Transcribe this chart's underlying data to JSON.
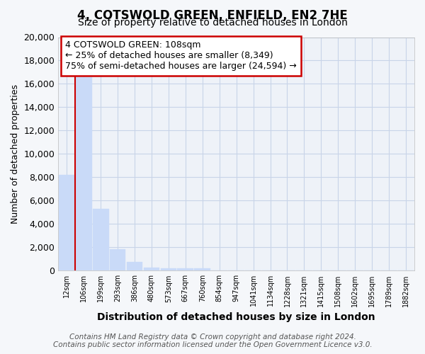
{
  "title": "4, COTSWOLD GREEN, ENFIELD, EN2 7HE",
  "subtitle": "Size of property relative to detached houses in London",
  "xlabel": "Distribution of detached houses by size in London",
  "ylabel": "Number of detached properties",
  "bar_color": "#c9daf8",
  "bar_edge_color": "#c9daf8",
  "categories": [
    "12sqm",
    "106sqm",
    "199sqm",
    "293sqm",
    "386sqm",
    "480sqm",
    "573sqm",
    "667sqm",
    "760sqm",
    "854sqm",
    "947sqm",
    "1041sqm",
    "1134sqm",
    "1228sqm",
    "1321sqm",
    "1415sqm",
    "1508sqm",
    "1602sqm",
    "1695sqm",
    "1789sqm",
    "1882sqm"
  ],
  "values": [
    8200,
    16600,
    5300,
    1850,
    750,
    270,
    200,
    200,
    200,
    0,
    0,
    0,
    0,
    0,
    0,
    0,
    0,
    0,
    0,
    0,
    0
  ],
  "ylim": [
    0,
    20000
  ],
  "yticks": [
    0,
    2000,
    4000,
    6000,
    8000,
    10000,
    12000,
    14000,
    16000,
    18000,
    20000
  ],
  "annotation_box_text": "4 COTSWOLD GREEN: 108sqm\n← 25% of detached houses are smaller (8,349)\n75% of semi-detached houses are larger (24,594) →",
  "annotation_box_color": "#cc0000",
  "vertical_line_x": 0.5,
  "footnote": "Contains HM Land Registry data © Crown copyright and database right 2024.\nContains public sector information licensed under the Open Government Licence v3.0.",
  "plot_bg_color": "#eef2f8",
  "fig_bg_color": "#f5f7fa",
  "grid_color": "#c8d4e8",
  "title_fontsize": 12,
  "subtitle_fontsize": 10,
  "footnote_fontsize": 7.5
}
